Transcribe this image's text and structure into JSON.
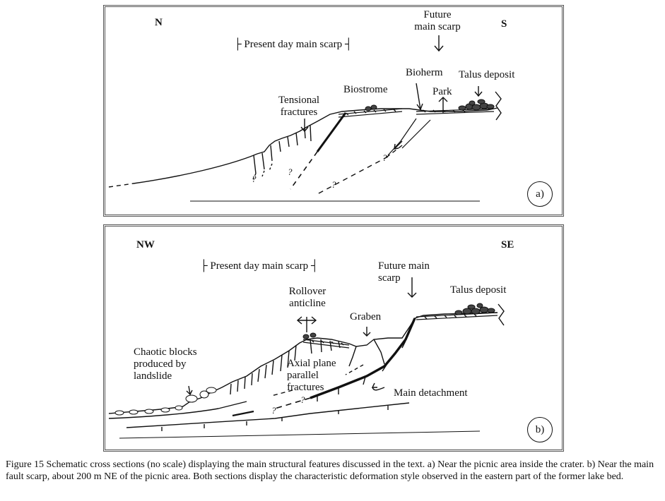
{
  "panel_a": {
    "dir_left": "N",
    "dir_right": "S",
    "present_scarp": "├ Present day main scarp ┤",
    "future_scarp_line1": "Future",
    "future_scarp_line2": "main scarp",
    "bioherm": "Bioherm",
    "talus": "Talus deposit",
    "biostrome": "Biostrome",
    "park": "Park",
    "tensional_line1": "Tensional",
    "tensional_line2": "fractures",
    "panel_label": "a)"
  },
  "panel_b": {
    "dir_left": "NW",
    "dir_right": "SE",
    "present_scarp": "├ Present day main scarp ┤",
    "future_line1": "Future main",
    "future_line2": "scarp",
    "talus": "Talus deposit",
    "rollover_line1": "Rollover",
    "rollover_line2": "anticline",
    "graben": "Graben",
    "chaotic_line1": "Chaotic blocks",
    "chaotic_line2": "produced by",
    "chaotic_line3": "landslide",
    "axial_line1": "Axial plane",
    "axial_line2": "parallel",
    "axial_line3": "fractures",
    "detachment": "Main detachment",
    "panel_label": "b)"
  },
  "caption": "Figure 15 Schematic cross sections (no scale) displaying the main structural features discussed in the text. a) Near the picnic area inside the crater. b) Near the main fault scarp, about 200 m NE of the picnic area. Both sections display the characteristic deformation style observed in the eastern part of the former lake bed."
}
